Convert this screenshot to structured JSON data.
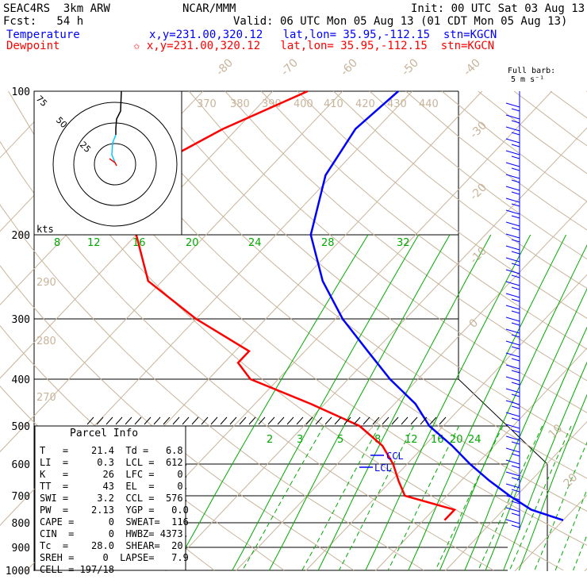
{
  "header": {
    "model": "SEAC4RS  3km ARW",
    "org": "NCAR/MMM",
    "init": "Init: 00 UTC Sat 03 Aug 13",
    "fcst": "Fcst:   54 h",
    "valid": "Valid: 06 UTC Mon 05 Aug 13 (01 CDT Mon 05 Aug 13)",
    "temp_label": "Temperature",
    "temp_info": "x,y=231.00,320.12   lat,lon= 35.95,-112.15  stn=KGCN",
    "dew_label": "Dewpoint",
    "dew_info": "✩ x,y=231.00,320.12   lat,lon= 35.95,-112.15  stn=KGCN",
    "barb_title": "Full barb:",
    "barb_unit": "5 m s⁻¹"
  },
  "colors": {
    "temperature": "#0000ff",
    "dewpoint": "#ff0000",
    "mixing_ratio": "#00aa00",
    "dry_adiabat": "#c8b49a",
    "hodograph_trace": "#00ccff"
  },
  "parcel_info": {
    "title": "Parcel Info",
    "rows": [
      "T   =    21.4  Td =   6.8",
      "LI  =     0.3  LCL =  612.",
      "K   =      26  LFC =    0.",
      "TT  =      43  EL  =    0.",
      "SWI =     3.2  CCL =  576.",
      "PW  =    2.13  YGP =   0.0",
      "CAPE =      0  SWEAT=  116",
      "CIN  =      0  HWBZ= 4373.",
      "Tc  =    28.0  SHEAR=  20.",
      "SREH =     0  LAPSE=   7.9",
      "CELL = 197/18"
    ]
  },
  "annotations": {
    "ccl": "CCL",
    "lcl": "LCL",
    "kts": "kts"
  },
  "chart_data": {
    "type": "line",
    "title": "",
    "pressure_levels": [
      "100",
      "200",
      "300",
      "400",
      "500",
      "600",
      "700",
      "800",
      "900",
      "1000"
    ],
    "series": [
      {
        "name": "Temperature",
        "points_p": [
          100,
          120,
          150,
          200,
          250,
          300,
          350,
          400,
          450,
          500,
          550,
          600,
          650,
          700,
          750,
          790
        ],
        "points_t": [
          -62,
          -63,
          -61,
          -55,
          -47,
          -39,
          -31,
          -24,
          -17,
          -12,
          -6,
          -1,
          4,
          9,
          14,
          20
        ]
      },
      {
        "name": "Dewpoint",
        "points_p": [
          100,
          120,
          150,
          200,
          250,
          300,
          350,
          370,
          400,
          450,
          500,
          550,
          600,
          650,
          700,
          750,
          790
        ],
        "points_t": [
          -75,
          -82,
          -88,
          -80,
          -72,
          -60,
          -48,
          -48,
          -44,
          -32,
          -22,
          -16,
          -12,
          -9,
          -6,
          3,
          3
        ]
      }
    ],
    "isotherm_labels": [
      "-80",
      "-70",
      "-60",
      "-50",
      "-40",
      "-30",
      "-20",
      "-10",
      "0",
      "10",
      "20",
      "30",
      "40"
    ],
    "theta_labels": [
      "370",
      "380",
      "390",
      "400",
      "410",
      "420",
      "430",
      "440",
      "290",
      "280",
      "270"
    ],
    "mixing_ratio_labels_upper": [
      "8",
      "12",
      "16",
      "20",
      "24",
      "28",
      "32"
    ],
    "mixing_ratio_labels_lower": [
      "2",
      "3",
      "5",
      "8",
      "12",
      "16",
      "20",
      "24"
    ],
    "hodograph": {
      "rings_kts": [
        "25",
        "50",
        "75"
      ]
    },
    "wind_barbs": "Full barb: 5 m s-1"
  }
}
